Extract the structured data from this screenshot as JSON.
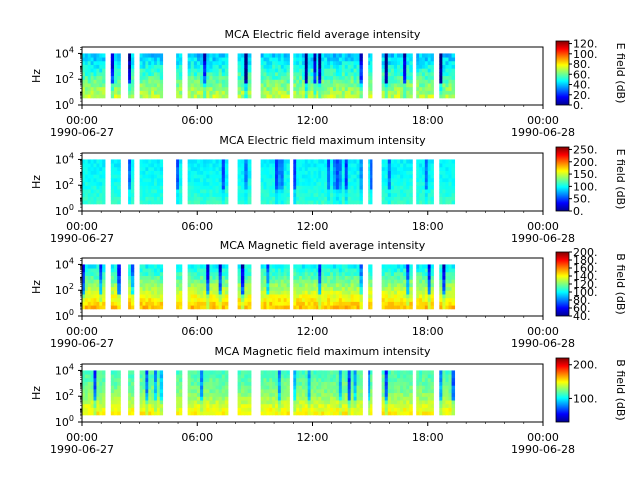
{
  "chart_data": [
    {
      "type": "heatmap",
      "title": "MCA  Electric field average intensity",
      "ylabel": "Hz",
      "xlabel": "",
      "x_ticks": [
        "00:00",
        "06:00",
        "12:00",
        "18:00",
        "00:00"
      ],
      "x_dates": [
        "1990-06-27",
        "1990-06-28"
      ],
      "y_ticks": [
        "10^0",
        "10^2",
        "10^4"
      ],
      "ylim": [
        1,
        31623
      ],
      "y_scale": "log",
      "colorbar": {
        "label": "E field (dB)",
        "ticks": [
          "0.",
          "20.",
          "40.",
          "60.",
          "80.",
          "100.",
          "120."
        ],
        "range": [
          0,
          125
        ]
      },
      "time_range_hours": [
        0,
        24
      ],
      "data_intervals_hours": [
        [
          0.0,
          1.2
        ],
        [
          1.5,
          2.0
        ],
        [
          2.4,
          2.7
        ],
        [
          3.0,
          4.2
        ],
        [
          4.9,
          5.2
        ],
        [
          5.5,
          7.6
        ],
        [
          8.1,
          8.8
        ],
        [
          9.3,
          10.8
        ],
        [
          11.0,
          12.5
        ],
        [
          12.3,
          14.6
        ],
        [
          14.9,
          15.1
        ],
        [
          15.6,
          17.2
        ],
        [
          17.4,
          18.3
        ],
        [
          18.6,
          19.4
        ]
      ],
      "typical_intensity_db": {
        "low_freq": 70,
        "mid_freq": 55,
        "high_freq": 40
      }
    },
    {
      "type": "heatmap",
      "title": "MCA  Electric field maximum intensity",
      "ylabel": "Hz",
      "xlabel": "",
      "x_ticks": [
        "00:00",
        "06:00",
        "12:00",
        "18:00",
        "00:00"
      ],
      "x_dates": [
        "1990-06-27",
        "1990-06-28"
      ],
      "y_ticks": [
        "10^0",
        "10^2",
        "10^4"
      ],
      "ylim": [
        1,
        31623
      ],
      "y_scale": "log",
      "colorbar": {
        "label": "E field (dB)",
        "ticks": [
          "0.",
          "50.",
          "100.",
          "150.",
          "200.",
          "250."
        ],
        "range": [
          0,
          260
        ]
      },
      "time_range_hours": [
        0,
        24
      ],
      "data_intervals_hours": [
        [
          0.0,
          1.2
        ],
        [
          1.5,
          2.0
        ],
        [
          2.4,
          2.7
        ],
        [
          3.0,
          4.2
        ],
        [
          4.9,
          5.2
        ],
        [
          5.5,
          7.6
        ],
        [
          8.1,
          8.8
        ],
        [
          9.3,
          10.8
        ],
        [
          11.0,
          12.5
        ],
        [
          12.3,
          14.6
        ],
        [
          14.9,
          15.1
        ],
        [
          15.6,
          17.2
        ],
        [
          17.4,
          18.3
        ],
        [
          18.6,
          19.4
        ]
      ],
      "typical_intensity_db": {
        "low_freq": 110,
        "mid_freq": 100,
        "high_freq": 95
      }
    },
    {
      "type": "heatmap",
      "title": "MCA  Magnetic field average intensity",
      "ylabel": "Hz",
      "xlabel": "",
      "x_ticks": [
        "00:00",
        "06:00",
        "12:00",
        "18:00",
        "00:00"
      ],
      "x_dates": [
        "1990-06-27",
        "1990-06-28"
      ],
      "y_ticks": [
        "10^0",
        "10^2",
        "10^4"
      ],
      "ylim": [
        1,
        31623
      ],
      "y_scale": "log",
      "colorbar": {
        "label": "B field (dB)",
        "ticks": [
          "40.",
          "60.",
          "80.",
          "100.",
          "120.",
          "140.",
          "160.",
          "180.",
          "200."
        ],
        "range": [
          40,
          200
        ]
      },
      "time_range_hours": [
        0,
        24
      ],
      "data_intervals_hours": [
        [
          0.0,
          1.2
        ],
        [
          1.5,
          2.0
        ],
        [
          2.4,
          2.7
        ],
        [
          3.0,
          4.2
        ],
        [
          4.9,
          5.2
        ],
        [
          5.5,
          7.6
        ],
        [
          8.1,
          8.8
        ],
        [
          9.3,
          10.8
        ],
        [
          11.0,
          12.5
        ],
        [
          12.3,
          14.6
        ],
        [
          14.9,
          15.1
        ],
        [
          15.6,
          17.2
        ],
        [
          17.4,
          18.3
        ],
        [
          18.6,
          19.4
        ]
      ],
      "typical_intensity_db": {
        "low_freq": 150,
        "mid_freq": 125,
        "high_freq": 100
      }
    },
    {
      "type": "heatmap",
      "title": "MCA  Magnetic field maximum intensity",
      "ylabel": "Hz",
      "xlabel": "",
      "x_ticks": [
        "00:00",
        "06:00",
        "12:00",
        "18:00",
        "00:00"
      ],
      "x_dates": [
        "1990-06-27",
        "1990-06-28"
      ],
      "y_ticks": [
        "10^0",
        "10^2",
        "10^4"
      ],
      "ylim": [
        1,
        31623
      ],
      "y_scale": "log",
      "colorbar": {
        "label": "B field (dB)",
        "ticks": [
          "100.",
          "200."
        ],
        "range": [
          30,
          220
        ]
      },
      "time_range_hours": [
        0,
        24
      ],
      "data_intervals_hours": [
        [
          0.0,
          1.2
        ],
        [
          1.5,
          2.0
        ],
        [
          2.4,
          2.7
        ],
        [
          3.0,
          4.2
        ],
        [
          4.9,
          5.2
        ],
        [
          5.5,
          7.6
        ],
        [
          8.1,
          8.8
        ],
        [
          9.3,
          10.8
        ],
        [
          11.0,
          12.5
        ],
        [
          12.3,
          14.6
        ],
        [
          14.9,
          15.1
        ],
        [
          15.6,
          17.2
        ],
        [
          17.4,
          18.3
        ],
        [
          18.6,
          19.4
        ]
      ],
      "typical_intensity_db": {
        "low_freq": 150,
        "mid_freq": 125,
        "high_freq": 115
      }
    }
  ]
}
